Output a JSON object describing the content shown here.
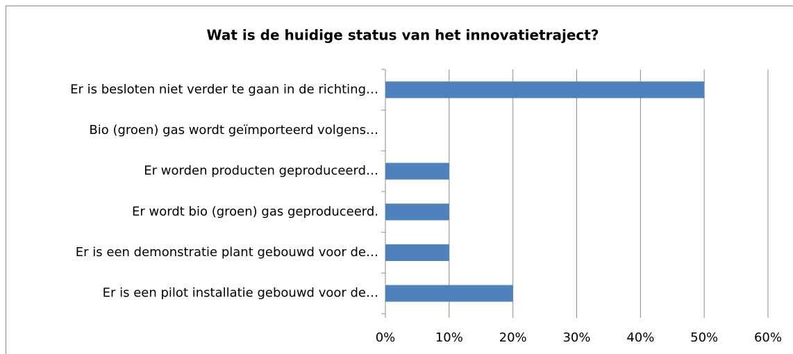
{
  "chart_data": {
    "type": "bar",
    "orientation": "horizontal",
    "title": "Wat is de huidige status van het innovatietraject?",
    "categories": [
      "Er is besloten niet verder te gaan in de richting…",
      "Bio (groen) gas wordt geïmporteerd volgens…",
      "Er worden producten geproduceerd…",
      "Er wordt bio (groen) gas geproduceerd.",
      "Er is een demonstratie plant gebouwd voor de…",
      "Er is een pilot installatie gebouwd voor de…"
    ],
    "values": [
      50,
      0,
      10,
      10,
      10,
      20
    ],
    "color": "#4f81bd",
    "xlim": [
      0,
      60
    ],
    "xticks": [
      {
        "value": 0,
        "label": "0%"
      },
      {
        "value": 10,
        "label": "10%"
      },
      {
        "value": 20,
        "label": "20%"
      },
      {
        "value": 30,
        "label": "30%"
      },
      {
        "value": 40,
        "label": "40%"
      },
      {
        "value": 50,
        "label": "50%"
      },
      {
        "value": 60,
        "label": "60%"
      }
    ],
    "grid": true
  }
}
